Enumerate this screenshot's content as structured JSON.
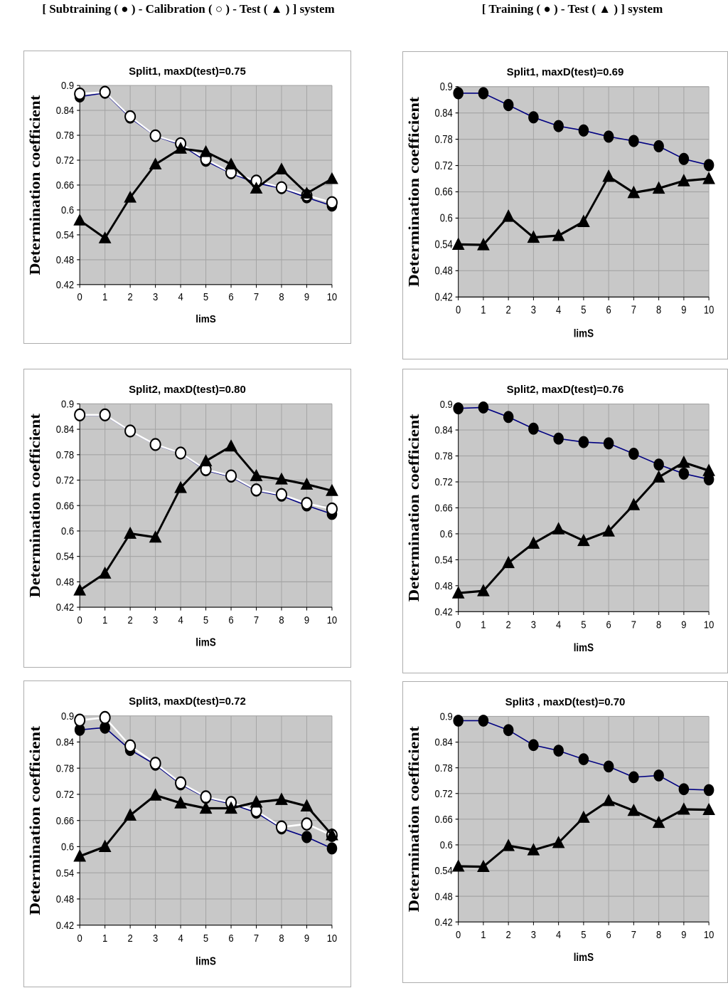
{
  "page": {
    "left_header": "[ Subtraining ( ● ) - Calibration ( ○ ) - Test ( ▲ ) ] system",
    "right_header": "[ Training ( ● ) - Test ( ▲ ) ] system"
  },
  "colors": {
    "plot_bg": "#c8c8c8",
    "grid": "#a4a4a4",
    "axis": "#000000",
    "subtraining_line": "#000080",
    "calibration_line": "#ffffff",
    "test_line": "#000000",
    "marker_fill_black": "#000000",
    "marker_fill_white": "#ffffff",
    "box_border": "#adadad"
  },
  "axes": {
    "ylabel": "Determination coefficient",
    "xlabel": "limS",
    "ylim": [
      0.42,
      0.9
    ],
    "ytick_labels": [
      "0.9",
      "0.84",
      "0.78",
      "0.72",
      "0.66",
      "0.6",
      "0.54",
      "0.48",
      "0.42"
    ],
    "xticks": [
      0,
      1,
      2,
      3,
      4,
      5,
      6,
      7,
      8,
      9,
      10
    ]
  },
  "chart_data": [
    {
      "type": "line",
      "title": "Split1, maxD(test)=0.75",
      "xlabel": "limS",
      "ylabel": "Determination coefficient",
      "x": [
        0,
        1,
        2,
        3,
        4,
        5,
        6,
        7,
        8,
        9,
        10
      ],
      "ylim": [
        0.42,
        0.9
      ],
      "series": [
        {
          "name": "Subtraining",
          "marker": "filled-circle",
          "line_color": "#000080",
          "values": [
            0.873,
            0.882,
            0.822,
            0.778,
            0.757,
            0.718,
            0.688,
            0.665,
            0.652,
            0.63,
            0.61
          ]
        },
        {
          "name": "Calibration",
          "marker": "open-circle",
          "line_color": "#ffffff",
          "values": [
            0.88,
            0.884,
            0.825,
            0.779,
            0.76,
            0.722,
            0.69,
            0.67,
            0.654,
            0.635,
            0.618
          ]
        },
        {
          "name": "Test",
          "marker": "triangle",
          "line_color": "#000000",
          "values": [
            0.575,
            0.532,
            0.63,
            0.71,
            0.748,
            0.74,
            0.71,
            0.652,
            0.698,
            0.64,
            0.675
          ]
        }
      ]
    },
    {
      "type": "line",
      "title": "Split1, maxD(test)=0.69",
      "xlabel": "limS",
      "ylabel": "Determination coefficient",
      "x": [
        0,
        1,
        2,
        3,
        4,
        5,
        6,
        7,
        8,
        9,
        10
      ],
      "ylim": [
        0.42,
        0.9
      ],
      "series": [
        {
          "name": "Training",
          "marker": "filled-circle",
          "line_color": "#000080",
          "values": [
            0.885,
            0.885,
            0.858,
            0.83,
            0.81,
            0.8,
            0.786,
            0.776,
            0.764,
            0.735,
            0.721
          ]
        },
        {
          "name": "Test",
          "marker": "triangle",
          "line_color": "#000000",
          "values": [
            0.54,
            0.539,
            0.604,
            0.556,
            0.56,
            0.592,
            0.695,
            0.658,
            0.668,
            0.685,
            0.69
          ]
        }
      ]
    },
    {
      "type": "line",
      "title": "Split2, maxD(test)=0.80",
      "xlabel": "limS",
      "ylabel": "Determination coefficient",
      "x": [
        0,
        1,
        2,
        3,
        4,
        5,
        6,
        7,
        8,
        9,
        10
      ],
      "ylim": [
        0.42,
        0.9
      ],
      "series": [
        {
          "name": "Subtraining",
          "marker": "filled-circle",
          "line_color": "#000080",
          "values": [
            0.873,
            0.873,
            0.835,
            0.803,
            0.783,
            0.743,
            0.728,
            0.695,
            0.683,
            0.66,
            0.64
          ]
        },
        {
          "name": "Calibration",
          "marker": "open-circle",
          "line_color": "#ffffff",
          "values": [
            0.874,
            0.874,
            0.836,
            0.804,
            0.784,
            0.745,
            0.73,
            0.697,
            0.686,
            0.665,
            0.652
          ]
        },
        {
          "name": "Test",
          "marker": "triangle",
          "line_color": "#000000",
          "values": [
            0.46,
            0.5,
            0.594,
            0.585,
            0.702,
            0.765,
            0.8,
            0.73,
            0.722,
            0.71,
            0.695
          ]
        }
      ]
    },
    {
      "type": "line",
      "title": "Split2, maxD(test)=0.76",
      "xlabel": "limS",
      "ylabel": "Determination coefficient",
      "x": [
        0,
        1,
        2,
        3,
        4,
        5,
        6,
        7,
        8,
        9,
        10
      ],
      "ylim": [
        0.42,
        0.9
      ],
      "series": [
        {
          "name": "Training",
          "marker": "filled-circle",
          "line_color": "#000080",
          "values": [
            0.89,
            0.892,
            0.87,
            0.843,
            0.82,
            0.812,
            0.809,
            0.785,
            0.76,
            0.739,
            0.726
          ]
        },
        {
          "name": "Test",
          "marker": "triangle",
          "line_color": "#000000",
          "values": [
            0.463,
            0.468,
            0.533,
            0.578,
            0.611,
            0.584,
            0.606,
            0.667,
            0.731,
            0.765,
            0.746
          ]
        }
      ]
    },
    {
      "type": "line",
      "title": "Split3, maxD(test)=0.72",
      "xlabel": "limS",
      "ylabel": "Determination coefficient",
      "x": [
        0,
        1,
        2,
        3,
        4,
        5,
        6,
        7,
        8,
        9,
        10
      ],
      "ylim": [
        0.42,
        0.9
      ],
      "series": [
        {
          "name": "Subtraining",
          "marker": "filled-circle",
          "line_color": "#000080",
          "values": [
            0.868,
            0.873,
            0.822,
            0.788,
            0.743,
            0.712,
            0.698,
            0.678,
            0.642,
            0.622,
            0.596
          ]
        },
        {
          "name": "Calibration",
          "marker": "open-circle",
          "line_color": "#ffffff",
          "values": [
            0.89,
            0.896,
            0.831,
            0.791,
            0.746,
            0.714,
            0.701,
            0.682,
            0.645,
            0.652,
            0.626
          ]
        },
        {
          "name": "Test",
          "marker": "triangle",
          "line_color": "#000000",
          "values": [
            0.578,
            0.6,
            0.672,
            0.718,
            0.7,
            0.688,
            0.688,
            0.702,
            0.708,
            0.693,
            0.627
          ]
        }
      ]
    },
    {
      "type": "line",
      "title": "Split3 , maxD(test)=0.70",
      "xlabel": "limS",
      "ylabel": "Determination coefficient",
      "x": [
        0,
        1,
        2,
        3,
        4,
        5,
        6,
        7,
        8,
        9,
        10
      ],
      "ylim": [
        0.42,
        0.9
      ],
      "series": [
        {
          "name": "Training",
          "marker": "filled-circle",
          "line_color": "#000080",
          "values": [
            0.89,
            0.89,
            0.868,
            0.833,
            0.82,
            0.8,
            0.783,
            0.758,
            0.762,
            0.73,
            0.728
          ]
        },
        {
          "name": "Test",
          "marker": "triangle",
          "line_color": "#000000",
          "values": [
            0.55,
            0.549,
            0.598,
            0.588,
            0.605,
            0.664,
            0.703,
            0.68,
            0.652,
            0.683,
            0.682
          ]
        }
      ]
    }
  ]
}
